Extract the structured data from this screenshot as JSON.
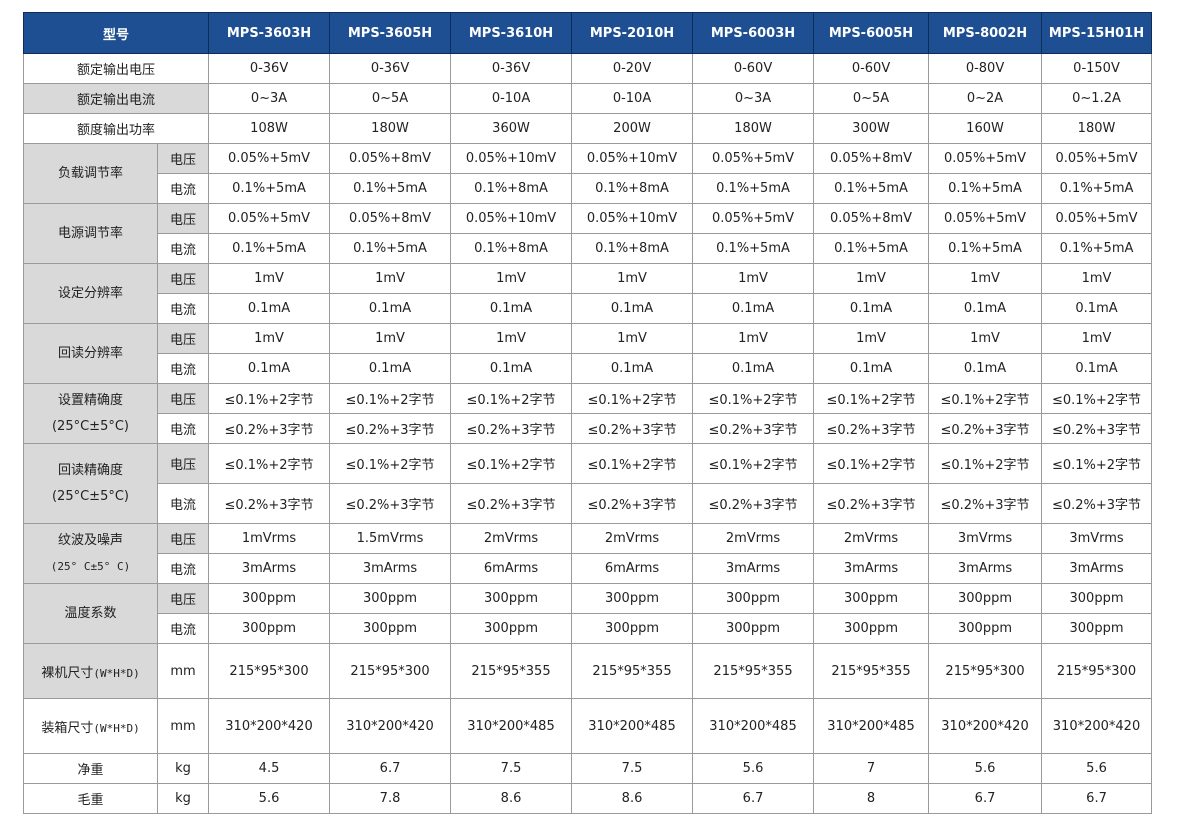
{
  "header": {
    "label": "型号",
    "models": [
      "MPS-3603H",
      "MPS-3605H",
      "MPS-3610H",
      "MPS-2010H",
      "MPS-6003H",
      "MPS-6005H",
      "MPS-8002H",
      "MPS-15H01H"
    ]
  },
  "rows": {
    "rated_voltage": {
      "label": "额定输出电压",
      "values": [
        "0-36V",
        "0-36V",
        "0-36V",
        "0-20V",
        "0-60V",
        "0-60V",
        "0-80V",
        "0-150V"
      ]
    },
    "rated_current": {
      "label": "额定输出电流",
      "values": [
        "0~3A",
        "0~5A",
        "0-10A",
        "0-10A",
        "0~3A",
        "0~5A",
        "0~2A",
        "0~1.2A"
      ]
    },
    "rated_power": {
      "label": "额度输出功率",
      "values": [
        "108W",
        "180W",
        "360W",
        "200W",
        "180W",
        "300W",
        "160W",
        "180W"
      ]
    },
    "load_reg": {
      "label": "负载调节率",
      "v_label": "电压",
      "v": [
        "0.05%+5mV",
        "0.05%+8mV",
        "0.05%+10mV",
        "0.05%+10mV",
        "0.05%+5mV",
        "0.05%+8mV",
        "0.05%+5mV",
        "0.05%+5mV"
      ],
      "i_label": "电流",
      "i": [
        "0.1%+5mA",
        "0.1%+5mA",
        "0.1%+8mA",
        "0.1%+8mA",
        "0.1%+5mA",
        "0.1%+5mA",
        "0.1%+5mA",
        "0.1%+5mA"
      ]
    },
    "line_reg": {
      "label": "电源调节率",
      "v_label": "电压",
      "v": [
        "0.05%+5mV",
        "0.05%+8mV",
        "0.05%+10mV",
        "0.05%+10mV",
        "0.05%+5mV",
        "0.05%+8mV",
        "0.05%+5mV",
        "0.05%+5mV"
      ],
      "i_label": "电流",
      "i": [
        "0.1%+5mA",
        "0.1%+5mA",
        "0.1%+8mA",
        "0.1%+8mA",
        "0.1%+5mA",
        "0.1%+5mA",
        "0.1%+5mA",
        "0.1%+5mA"
      ]
    },
    "set_res": {
      "label": "设定分辨率",
      "v_label": "电压",
      "v": [
        "1mV",
        "1mV",
        "1mV",
        "1mV",
        "1mV",
        "1mV",
        "1mV",
        "1mV"
      ],
      "i_label": "电流",
      "i": [
        "0.1mA",
        "0.1mA",
        "0.1mA",
        "0.1mA",
        "0.1mA",
        "0.1mA",
        "0.1mA",
        "0.1mA"
      ]
    },
    "read_res": {
      "label": "回读分辨率",
      "v_label": "电压",
      "v": [
        "1mV",
        "1mV",
        "1mV",
        "1mV",
        "1mV",
        "1mV",
        "1mV",
        "1mV"
      ],
      "i_label": "电流",
      "i": [
        "0.1mA",
        "0.1mA",
        "0.1mA",
        "0.1mA",
        "0.1mA",
        "0.1mA",
        "0.1mA",
        "0.1mA"
      ]
    },
    "set_acc": {
      "label": "设置精确度",
      "label2": "(25°C±5°C)",
      "v_label": "电压",
      "v": [
        "≤0.1%+2字节",
        "≤0.1%+2字节",
        "≤0.1%+2字节",
        "≤0.1%+2字节",
        "≤0.1%+2字节",
        "≤0.1%+2字节",
        "≤0.1%+2字节",
        "≤0.1%+2字节"
      ],
      "i_label": "电流",
      "i": [
        "≤0.2%+3字节",
        "≤0.2%+3字节",
        "≤0.2%+3字节",
        "≤0.2%+3字节",
        "≤0.2%+3字节",
        "≤0.2%+3字节",
        "≤0.2%+3字节",
        "≤0.2%+3字节"
      ]
    },
    "read_acc": {
      "label": "回读精确度",
      "label2": "(25°C±5°C)",
      "v_label": "电压",
      "v": [
        "≤0.1%+2字节",
        "≤0.1%+2字节",
        "≤0.1%+2字节",
        "≤0.1%+2字节",
        "≤0.1%+2字节",
        "≤0.1%+2字节",
        "≤0.1%+2字节",
        "≤0.1%+2字节"
      ],
      "i_label": "电流",
      "i": [
        "≤0.2%+3字节",
        "≤0.2%+3字节",
        "≤0.2%+3字节",
        "≤0.2%+3字节",
        "≤0.2%+3字节",
        "≤0.2%+3字节",
        "≤0.2%+3字节",
        "≤0.2%+3字节"
      ]
    },
    "ripple": {
      "label": "纹波及噪声",
      "label2": "(25° C±5° C)",
      "v_label": "电压",
      "v": [
        "1mVrms",
        "1.5mVrms",
        "2mVrms",
        "2mVrms",
        "2mVrms",
        "2mVrms",
        "3mVrms",
        "3mVrms"
      ],
      "i_label": "电流",
      "i": [
        "3mArms",
        "3mArms",
        "6mArms",
        "6mArms",
        "3mArms",
        "3mArms",
        "3mArms",
        "3mArms"
      ]
    },
    "temp_coef": {
      "label": "温度系数",
      "v_label": "电压",
      "v": [
        "300ppm",
        "300ppm",
        "300ppm",
        "300ppm",
        "300ppm",
        "300ppm",
        "300ppm",
        "300ppm"
      ],
      "i_label": "电流",
      "i": [
        "300ppm",
        "300ppm",
        "300ppm",
        "300ppm",
        "300ppm",
        "300ppm",
        "300ppm",
        "300ppm"
      ]
    },
    "bare_size": {
      "label": "裸机尺寸",
      "label_suffix": "(W*H*D)",
      "unit": "mm",
      "values": [
        "215*95*300",
        "215*95*300",
        "215*95*355",
        "215*95*355",
        "215*95*355",
        "215*95*355",
        "215*95*300",
        "215*95*300"
      ]
    },
    "box_size": {
      "label": "装箱尺寸",
      "label_suffix": "(W*H*D)",
      "unit": "mm",
      "values": [
        "310*200*420",
        "310*200*420",
        "310*200*485",
        "310*200*485",
        "310*200*485",
        "310*200*485",
        "310*200*420",
        "310*200*420"
      ]
    },
    "net_weight": {
      "label": "净重",
      "unit": "kg",
      "values": [
        "4.5",
        "6.7",
        "7.5",
        "7.5",
        "5.6",
        "7",
        "5.6",
        "5.6"
      ]
    },
    "gross_weight": {
      "label": "毛重",
      "unit": "kg",
      "values": [
        "5.6",
        "7.8",
        "8.6",
        "8.6",
        "6.7",
        "8",
        "6.7",
        "6.7"
      ]
    }
  }
}
